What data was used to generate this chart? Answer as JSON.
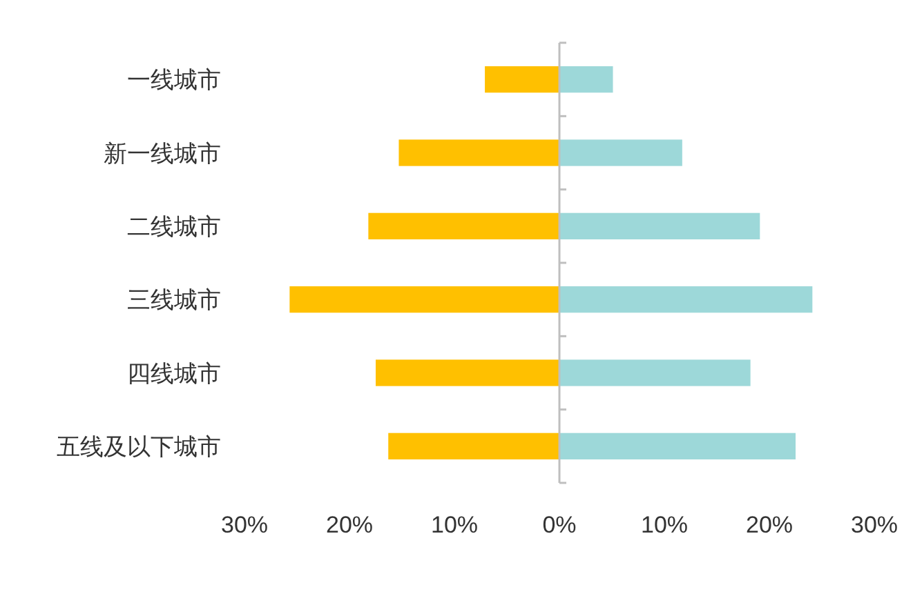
{
  "chart_data": {
    "type": "bar",
    "orientation": "horizontal",
    "categories": [
      "一线城市",
      "新一线城市",
      "二线城市",
      "三线城市",
      "四线城市",
      "五线及以下城市"
    ],
    "series": [
      {
        "color": "#ffc000",
        "values": [
          -7.1,
          -15.3,
          -18.2,
          -25.7,
          -17.5,
          -16.3
        ]
      },
      {
        "color": "#9dd8d9",
        "values": [
          5.1,
          11.7,
          19.1,
          24.1,
          18.2,
          22.5
        ]
      }
    ],
    "xlim": [
      -30,
      30
    ],
    "xticks": [
      {
        "value": -30,
        "label": "30%"
      },
      {
        "value": -20,
        "label": "20%"
      },
      {
        "value": -10,
        "label": "10%"
      },
      {
        "value": 0,
        "label": "0%"
      },
      {
        "value": 10,
        "label": "10%"
      },
      {
        "value": 20,
        "label": "20%"
      },
      {
        "value": 30,
        "label": "30%"
      }
    ],
    "stacked": true
  }
}
